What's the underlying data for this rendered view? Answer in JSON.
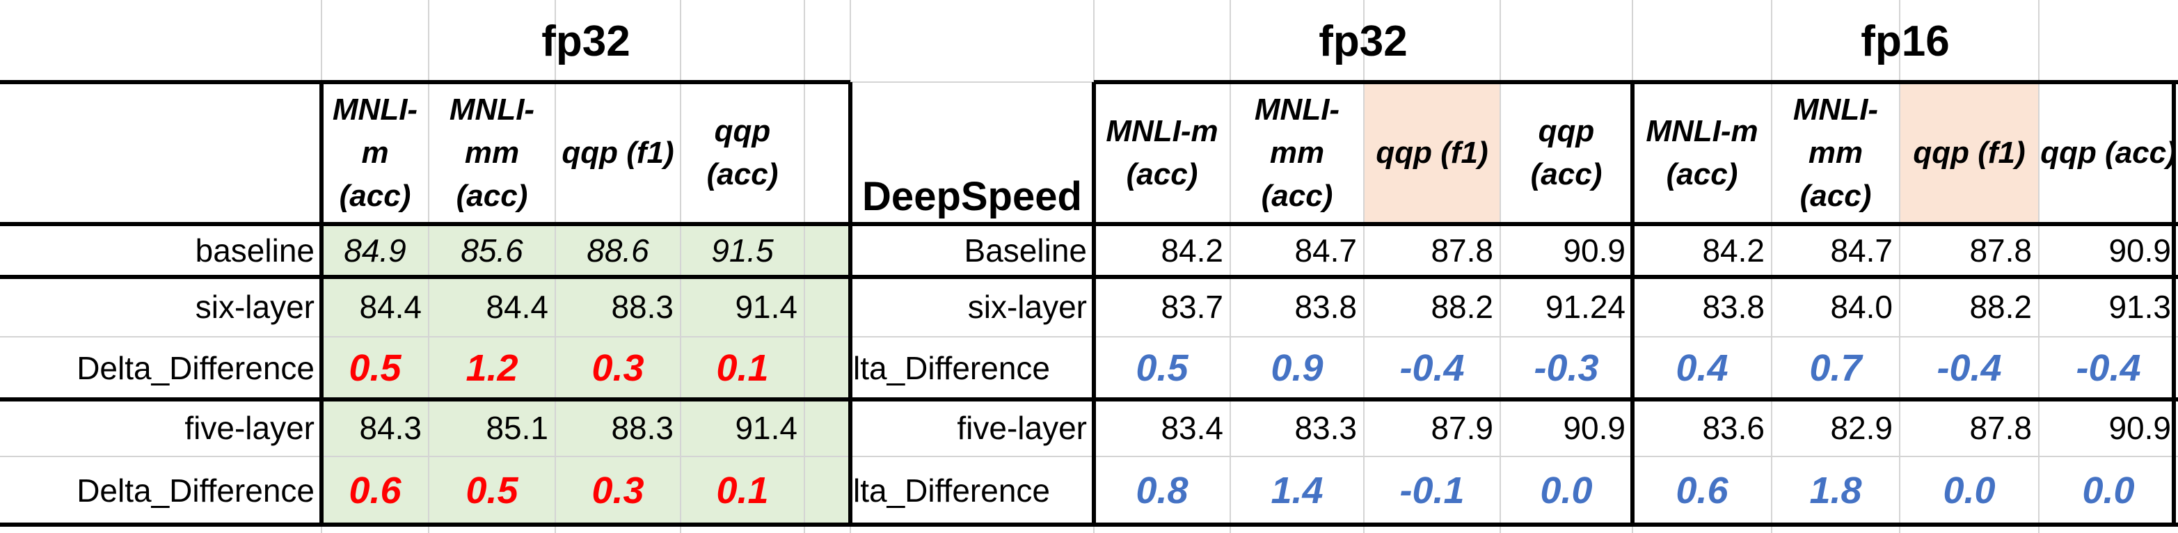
{
  "colors": {
    "red": "#ff0000",
    "blue": "#4472c4",
    "green_fill": "#e2efd9",
    "peach_fill": "#fbe4d5"
  },
  "left_table": {
    "group_title": "fp32",
    "columns": [
      "MNLI-m (acc)",
      "MNLI-mm (acc)",
      "qqp (f1)",
      "qqp (acc)"
    ],
    "rows": [
      {
        "label": "baseline",
        "values": [
          "84.9",
          "85.6",
          "88.6",
          "91.5"
        ]
      },
      {
        "label": "six-layer",
        "values": [
          "84.4",
          "84.4",
          "88.3",
          "91.4"
        ]
      },
      {
        "label": "Delta_Difference",
        "values": [
          "0.5",
          "1.2",
          "0.3",
          "0.1"
        ]
      },
      {
        "label": "five-layer",
        "values": [
          "84.3",
          "85.1",
          "88.3",
          "91.4"
        ]
      },
      {
        "label": "Delta_Difference",
        "values": [
          "0.6",
          "0.5",
          "0.3",
          "0.1"
        ]
      }
    ]
  },
  "right_table": {
    "header_label": "DeepSpeed",
    "groups": [
      {
        "title": "fp32",
        "columns": [
          "MNLI-m (acc)",
          "MNLI-mm (acc)",
          "qqp (f1)",
          "qqp (acc)"
        ]
      },
      {
        "title": "fp16",
        "columns": [
          "MNLI-m (acc)",
          "MNLI-mm (acc)",
          "qqp (f1)",
          "qqp (acc)"
        ]
      }
    ],
    "rows": [
      {
        "label": "Baseline",
        "values": [
          "84.2",
          "84.7",
          "87.8",
          "90.9",
          "84.2",
          "84.7",
          "87.8",
          "90.9"
        ]
      },
      {
        "label": "six-layer",
        "values": [
          "83.7",
          "83.8",
          "88.2",
          "91.24",
          "83.8",
          "84.0",
          "88.2",
          "91.3"
        ]
      },
      {
        "label": "lta_Difference",
        "values": [
          "0.5",
          "0.9",
          "-0.4",
          "-0.3",
          "0.4",
          "0.7",
          "-0.4",
          "-0.4"
        ]
      },
      {
        "label": "five-layer",
        "values": [
          "83.4",
          "83.3",
          "87.9",
          "90.9",
          "83.6",
          "82.9",
          "87.8",
          "90.9"
        ]
      },
      {
        "label": "lta_Difference",
        "values": [
          "0.8",
          "1.4",
          "-0.1",
          "0.0",
          "0.6",
          "1.8",
          "0.0",
          "0.0"
        ]
      }
    ]
  }
}
